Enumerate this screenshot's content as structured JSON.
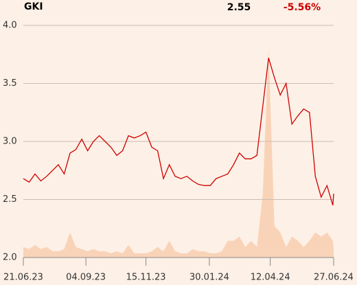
{
  "header": {
    "symbol": "GKI",
    "price": 2.55,
    "change": -5.56,
    "change_label": "-5.56%"
  },
  "chart_data": {
    "type": "line",
    "x": [
      "21.06.23",
      "28.06.23",
      "05.07.23",
      "12.07.23",
      "19.07.23",
      "26.07.23",
      "02.08.23",
      "09.08.23",
      "16.08.23",
      "23.08.23",
      "30.08.23",
      "06.09.23",
      "13.09.23",
      "20.09.23",
      "27.09.23",
      "04.10.23",
      "11.10.23",
      "18.10.23",
      "25.10.23",
      "01.11.23",
      "08.11.23",
      "15.11.23",
      "22.11.23",
      "29.11.23",
      "06.12.23",
      "13.12.23",
      "20.12.23",
      "27.12.23",
      "03.01.24",
      "10.01.24",
      "17.01.24",
      "24.01.24",
      "31.01.24",
      "07.02.24",
      "14.02.24",
      "21.02.24",
      "28.02.24",
      "06.03.24",
      "13.03.24",
      "20.03.24",
      "27.03.24",
      "03.04.24",
      "10.04.24",
      "17.04.24",
      "24.04.24",
      "01.05.24",
      "08.05.24",
      "15.05.24",
      "22.05.24",
      "29.05.24",
      "05.06.24",
      "12.06.24",
      "19.06.24",
      "26.06.24",
      "27.06.24"
    ],
    "series": [
      {
        "color": "#cc0000",
        "values": [
          2.68,
          2.65,
          2.72,
          2.66,
          2.7,
          2.75,
          2.8,
          2.72,
          2.9,
          2.93,
          3.02,
          2.92,
          3.0,
          3.05,
          3.0,
          2.95,
          2.88,
          2.92,
          3.05,
          3.03,
          3.05,
          3.08,
          2.95,
          2.92,
          2.68,
          2.8,
          2.7,
          2.68,
          2.7,
          2.66,
          2.63,
          2.62,
          2.62,
          2.68,
          2.7,
          2.72,
          2.8,
          2.9,
          2.85,
          2.85,
          2.88,
          3.3,
          3.72,
          3.55,
          3.4,
          3.5,
          3.15,
          3.22,
          3.28,
          3.25,
          2.7,
          2.52,
          2.62,
          2.45,
          2.55
        ]
      }
    ],
    "volume": {
      "color": "#f9d3b8",
      "values": [
        5,
        4,
        6,
        4,
        5,
        3,
        3,
        4,
        12,
        5,
        4,
        3,
        4,
        3,
        3,
        2,
        3,
        2,
        6,
        2,
        2,
        2,
        3,
        5,
        3,
        8,
        3,
        2,
        2,
        4,
        3,
        3,
        2,
        2,
        3,
        8,
        8,
        10,
        5,
        8,
        5,
        30,
        100,
        15,
        12,
        5,
        10,
        8,
        5,
        8,
        12,
        10,
        12,
        8,
        4
      ]
    },
    "xlim": [
      "21.06.23",
      "27.06.24"
    ],
    "xticks": [
      "21.06.23",
      "04.09.23",
      "15.11.23",
      "30.01.24",
      "12.04.24",
      "27.06.24"
    ],
    "ylim": [
      2.0,
      4.0
    ],
    "yticks": [
      {
        "value": 2.0,
        "label": "2.0"
      },
      2.5,
      {
        "value": 3.0,
        "label": "3.0"
      },
      3.5,
      {
        "value": 4.0,
        "label": "4.0"
      }
    ],
    "grid": true
  }
}
